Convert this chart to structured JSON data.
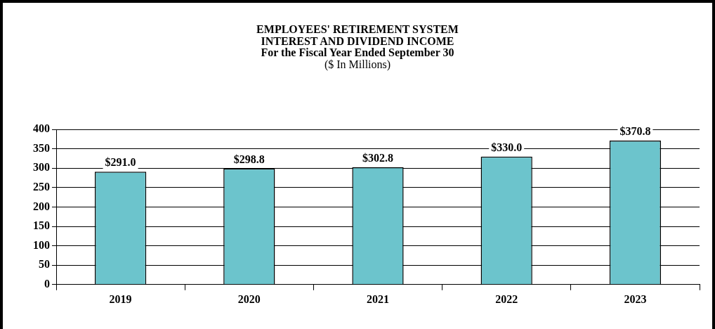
{
  "chart_data": {
    "type": "bar",
    "title": "EMPLOYEES' RETIREMENT SYSTEM\nINTEREST AND DIVIDEND INCOME\nFor the Fiscal Year Ended September 30",
    "subtitle": "($ In Millions)",
    "categories": [
      "2019",
      "2020",
      "2021",
      "2022",
      "2023"
    ],
    "values": [
      291.0,
      298.8,
      302.8,
      330.0,
      370.8
    ],
    "value_labels": [
      "$291.0",
      "$298.8",
      "$302.8",
      "$330.0",
      "$370.8"
    ],
    "color": "#6cc4cc",
    "ylim": [
      0,
      400
    ],
    "yticks": [
      0,
      50,
      100,
      150,
      200,
      250,
      300,
      350,
      400
    ],
    "grid": "y",
    "legend": false
  }
}
